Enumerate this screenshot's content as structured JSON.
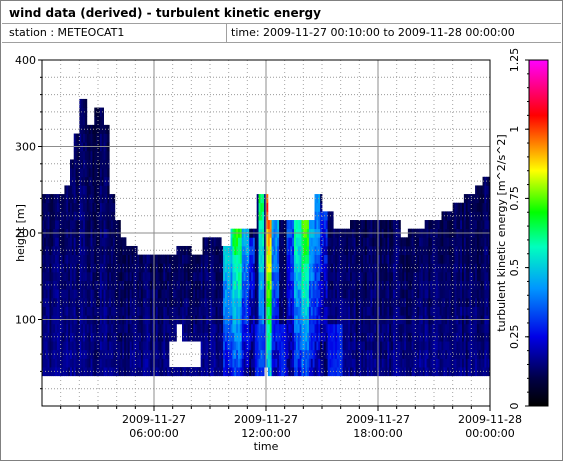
{
  "header": {
    "title": "wind data (derived) - turbulent kinetic energy",
    "station": "station : METEOCAT1",
    "time_range": "time: 2009-11-27 00:10:00 to 2009-11-28 00:00:00"
  },
  "chart_data": {
    "type": "heatmap",
    "xlabel": "time",
    "ylabel": "height [m]",
    "colorbar_label": "turbulent kinetic energy [m^2/s^2]",
    "xlim": [
      "2009-11-27 00:00",
      "2009-11-28 00:00"
    ],
    "ylim": [
      0,
      400
    ],
    "clim": [
      0,
      1.25
    ],
    "grid": true,
    "x_ticks": [
      {
        "value_hours": 6,
        "line1": "2009-11-27",
        "line2": "06:00:00"
      },
      {
        "value_hours": 12,
        "line1": "2009-11-27",
        "line2": "12:00:00"
      },
      {
        "value_hours": 18,
        "line1": "2009-11-27",
        "line2": "18:00:00"
      },
      {
        "value_hours": 24,
        "line1": "2009-11-28",
        "line2": "00:00:00"
      }
    ],
    "y_ticks": [
      {
        "value": 100,
        "label": "100"
      },
      {
        "value": 200,
        "label": "200"
      },
      {
        "value": 300,
        "label": "300"
      },
      {
        "value": 400,
        "label": "400"
      }
    ],
    "colorbar_ticks": [
      {
        "value": 0,
        "label": "0"
      },
      {
        "value": 0.25,
        "label": "0.25"
      },
      {
        "value": 0.5,
        "label": "0.5"
      },
      {
        "value": 0.75,
        "label": "0.75"
      },
      {
        "value": 1,
        "label": "1"
      },
      {
        "value": 1.25,
        "label": "1.25"
      }
    ],
    "data_floor_height_m": 35,
    "profile_tops": [
      {
        "t_start_h": 0.0,
        "t_end_h": 1.2,
        "top_m": 245
      },
      {
        "t_start_h": 1.2,
        "t_end_h": 1.5,
        "top_m": 255
      },
      {
        "t_start_h": 1.5,
        "t_end_h": 1.7,
        "top_m": 285
      },
      {
        "t_start_h": 1.7,
        "t_end_h": 2.0,
        "top_m": 315
      },
      {
        "t_start_h": 2.0,
        "t_end_h": 2.4,
        "top_m": 355
      },
      {
        "t_start_h": 2.4,
        "t_end_h": 2.8,
        "top_m": 325
      },
      {
        "t_start_h": 2.8,
        "t_end_h": 3.3,
        "top_m": 345
      },
      {
        "t_start_h": 3.3,
        "t_end_h": 3.6,
        "top_m": 325
      },
      {
        "t_start_h": 3.6,
        "t_end_h": 3.9,
        "top_m": 245
      },
      {
        "t_start_h": 3.9,
        "t_end_h": 4.2,
        "top_m": 215
      },
      {
        "t_start_h": 4.2,
        "t_end_h": 4.5,
        "top_m": 195
      },
      {
        "t_start_h": 4.5,
        "t_end_h": 5.1,
        "top_m": 185
      },
      {
        "t_start_h": 5.1,
        "t_end_h": 7.2,
        "top_m": 175
      },
      {
        "t_start_h": 7.2,
        "t_end_h": 8.0,
        "top_m": 185
      },
      {
        "t_start_h": 8.0,
        "t_end_h": 8.6,
        "top_m": 175
      },
      {
        "t_start_h": 8.6,
        "t_end_h": 9.6,
        "top_m": 195
      },
      {
        "t_start_h": 9.6,
        "t_end_h": 10.1,
        "top_m": 185
      },
      {
        "t_start_h": 10.1,
        "t_end_h": 11.5,
        "top_m": 205
      },
      {
        "t_start_h": 11.5,
        "t_end_h": 12.1,
        "top_m": 245
      },
      {
        "t_start_h": 12.1,
        "t_end_h": 12.4,
        "top_m": 215
      },
      {
        "t_start_h": 12.4,
        "t_end_h": 14.6,
        "top_m": 215
      },
      {
        "t_start_h": 14.6,
        "t_end_h": 15.0,
        "top_m": 245
      },
      {
        "t_start_h": 15.0,
        "t_end_h": 15.6,
        "top_m": 225
      },
      {
        "t_start_h": 15.6,
        "t_end_h": 16.5,
        "top_m": 205
      },
      {
        "t_start_h": 16.5,
        "t_end_h": 17.6,
        "top_m": 215
      },
      {
        "t_start_h": 17.6,
        "t_end_h": 19.2,
        "top_m": 215
      },
      {
        "t_start_h": 19.2,
        "t_end_h": 19.6,
        "top_m": 195
      },
      {
        "t_start_h": 19.6,
        "t_end_h": 20.5,
        "top_m": 205
      },
      {
        "t_start_h": 20.5,
        "t_end_h": 21.4,
        "top_m": 215
      },
      {
        "t_start_h": 21.4,
        "t_end_h": 22.0,
        "top_m": 225
      },
      {
        "t_start_h": 22.0,
        "t_end_h": 22.6,
        "top_m": 235
      },
      {
        "t_start_h": 22.6,
        "t_end_h": 23.2,
        "top_m": 245
      },
      {
        "t_start_h": 23.2,
        "t_end_h": 23.6,
        "top_m": 255
      },
      {
        "t_start_h": 23.6,
        "t_end_h": 24.0,
        "top_m": 265
      }
    ],
    "missing_regions": [
      {
        "t_start_h": 7.2,
        "t_end_h": 7.5,
        "h_min_m": 70,
        "h_max_m": 100
      },
      {
        "t_start_h": 6.8,
        "t_end_h": 8.5,
        "h_min_m": 45,
        "h_max_m": 75
      },
      {
        "t_start_h": 11.9,
        "t_end_h": 12.1,
        "h_min_m": 35,
        "h_max_m": 45
      }
    ],
    "high_tke_columns": [
      {
        "t_start_h": 9.7,
        "t_end_h": 10.2,
        "tke": 0.55,
        "top_m": 205
      },
      {
        "t_start_h": 10.2,
        "t_end_h": 10.7,
        "tke": 0.7,
        "top_m": 205
      },
      {
        "t_start_h": 10.7,
        "t_end_h": 11.1,
        "tke": 0.45,
        "top_m": 200
      },
      {
        "t_start_h": 11.1,
        "t_end_h": 11.4,
        "tke": 0.3,
        "top_m": 190
      },
      {
        "t_start_h": 11.6,
        "t_end_h": 11.9,
        "tke": 0.65,
        "top_m": 245
      },
      {
        "t_start_h": 12.0,
        "t_end_h": 12.3,
        "tke": 1.05,
        "top_m": 245
      },
      {
        "t_start_h": 12.3,
        "t_end_h": 12.7,
        "tke": 0.45,
        "top_m": 215
      },
      {
        "t_start_h": 13.1,
        "t_end_h": 13.5,
        "tke": 0.35,
        "top_m": 215
      },
      {
        "t_start_h": 13.5,
        "t_end_h": 13.9,
        "tke": 0.6,
        "top_m": 210
      },
      {
        "t_start_h": 13.9,
        "t_end_h": 14.3,
        "tke": 0.75,
        "top_m": 215
      },
      {
        "t_start_h": 14.3,
        "t_end_h": 14.6,
        "tke": 0.5,
        "top_m": 230
      },
      {
        "t_start_h": 14.6,
        "t_end_h": 14.9,
        "tke": 0.45,
        "top_m": 245
      },
      {
        "t_start_h": 14.9,
        "t_end_h": 15.3,
        "tke": 0.3,
        "top_m": 225
      }
    ]
  }
}
